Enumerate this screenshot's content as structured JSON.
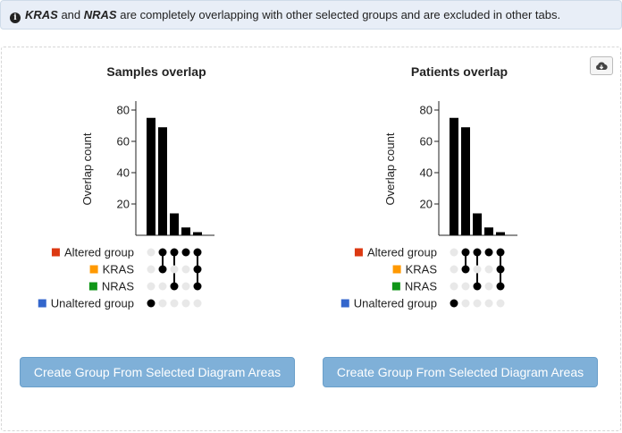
{
  "alert": {
    "gene1": "KRAS",
    "text1": " and ",
    "gene2": "NRAS",
    "text2": " are completely overlapping with other selected groups and are excluded in other tabs."
  },
  "download_icon": "cloud-download-icon",
  "groups": [
    {
      "name": "Altered group",
      "color": "#dc3912"
    },
    {
      "name": "KRAS",
      "color": "#ff9900"
    },
    {
      "name": "NRAS",
      "color": "#109618"
    },
    {
      "name": "Unaltered group",
      "color": "#3366cc"
    }
  ],
  "chart_data": [
    {
      "type": "bar",
      "title": "Samples overlap",
      "ylabel": "Overlap count",
      "yticks": [
        20,
        40,
        60,
        80
      ],
      "ylim": [
        0,
        80
      ],
      "values": [
        75,
        69,
        14,
        5,
        2
      ],
      "membership": [
        [
          3
        ],
        [
          0,
          1
        ],
        [
          0,
          2
        ],
        [
          0
        ],
        [
          0,
          1,
          2
        ]
      ]
    },
    {
      "type": "bar",
      "title": "Patients overlap",
      "ylabel": "Overlap count",
      "yticks": [
        20,
        40,
        60,
        80
      ],
      "ylim": [
        0,
        80
      ],
      "values": [
        75,
        69,
        14,
        5,
        2
      ],
      "membership": [
        [
          3
        ],
        [
          0,
          1
        ],
        [
          0,
          2
        ],
        [
          0
        ],
        [
          0,
          1,
          2
        ]
      ]
    }
  ],
  "buttons": {
    "create_left": "Create Group From Selected Diagram Areas",
    "create_right": "Create Group From Selected Diagram Areas"
  }
}
